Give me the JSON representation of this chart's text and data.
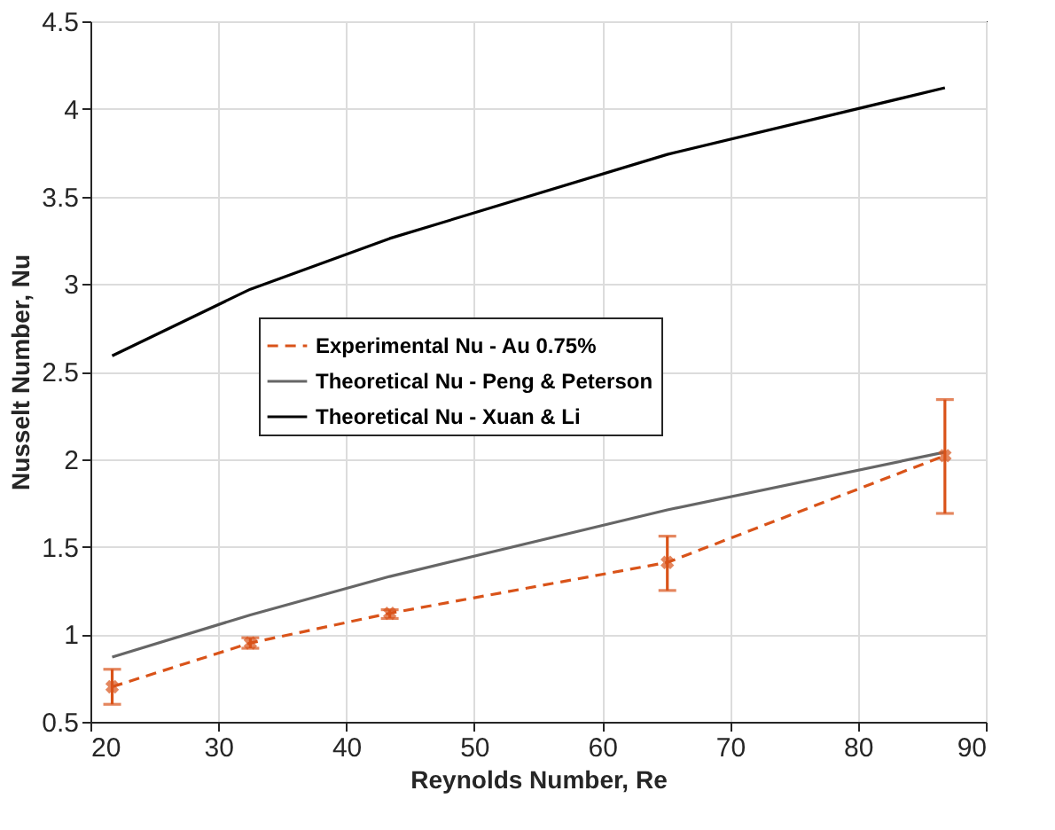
{
  "chart_data": {
    "type": "line",
    "xlabel": "Reynolds Number, Re",
    "ylabel": "Nusselt Number, Nu",
    "xlim": [
      20,
      90
    ],
    "xticks": [
      20,
      30,
      40,
      50,
      60,
      70,
      80,
      90
    ],
    "ylim": [
      0.5,
      4.5
    ],
    "yticks": [
      0.5,
      {
        "value": 1,
        "label": "1"
      },
      1.5,
      {
        "value": 2,
        "label": "2"
      },
      2.5,
      {
        "value": 3,
        "label": "3"
      },
      3.5,
      {
        "value": 4,
        "label": "4"
      },
      4.5
    ],
    "grid": true,
    "legend": "center left",
    "x": [
      21.7,
      32.5,
      43.4,
      65.1,
      86.8
    ],
    "series": [
      {
        "name": "Experimental Nu - Au 0.75%",
        "color": "#d95319",
        "marker": "cross",
        "line_style": "dashed",
        "values": [
          0.7,
          0.95,
          1.12,
          1.41,
          2.02
        ],
        "errors": [
          [
            0.6,
            0.8
          ],
          [
            0.92,
            0.98
          ],
          [
            1.09,
            1.14
          ],
          [
            1.25,
            1.56
          ],
          [
            1.69,
            2.34
          ]
        ]
      },
      {
        "name": "Theoretical Nu - Peng & Peterson",
        "color": "#666666",
        "marker": "none",
        "line_style": "solid",
        "values": [
          0.87,
          1.11,
          1.33,
          1.71,
          2.04
        ]
      },
      {
        "name": "Theoretical Nu - Xuan & Li",
        "color": "#000000",
        "marker": "none",
        "line_style": "solid",
        "values": [
          2.59,
          2.97,
          3.26,
          3.74,
          4.12
        ]
      }
    ]
  }
}
